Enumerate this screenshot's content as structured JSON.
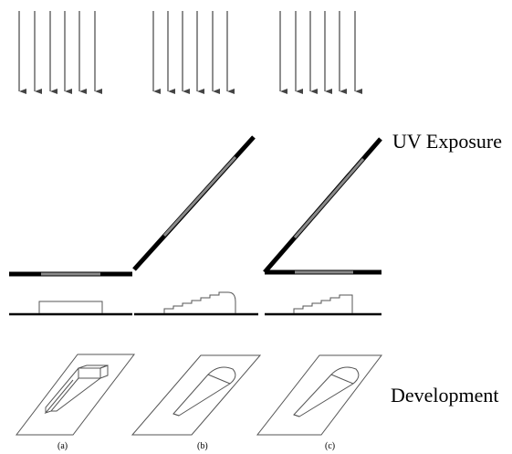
{
  "labels": {
    "uv_exposure": "UV Exposure",
    "development": "Development"
  },
  "panels": [
    {
      "id": "a",
      "caption": "(a)"
    },
    {
      "id": "b",
      "caption": "(b)"
    },
    {
      "id": "c",
      "caption": "(c)"
    }
  ],
  "colors": {
    "ink": "#000000",
    "mask_gray": "#8a8a8a",
    "line_gray": "#555555"
  }
}
